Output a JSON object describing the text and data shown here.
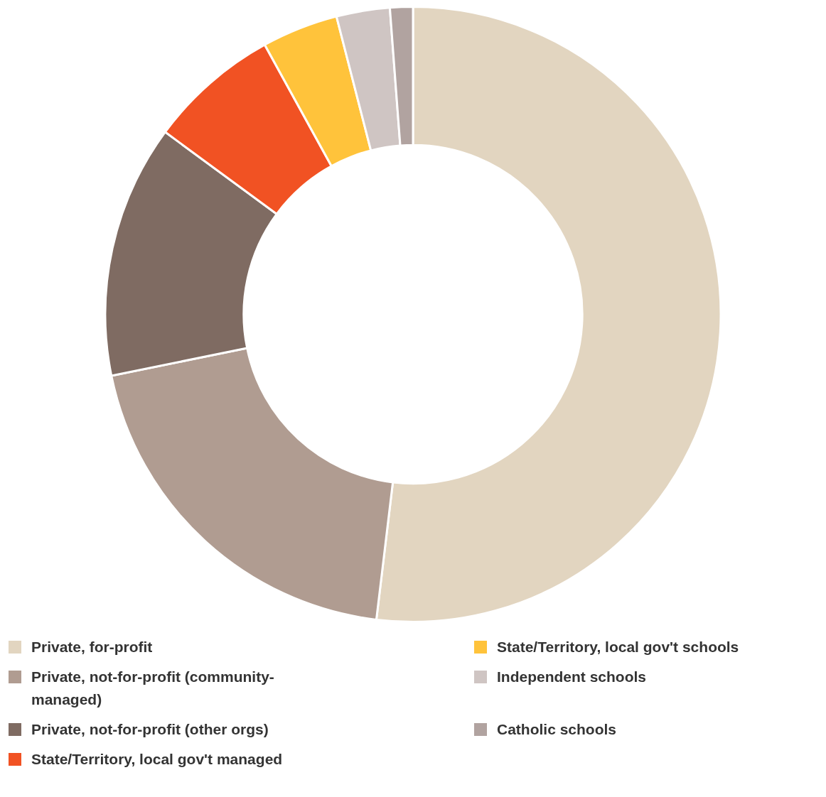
{
  "chart_data": {
    "type": "donut",
    "categories": [
      "Private, for-profit",
      "Private, not-for-profit (community-managed)",
      "Private, not-for-profit (other orgs)",
      "State/Territory, local gov't managed",
      "State/Territory, local gov't schools",
      "Independent schools",
      "Catholic schools"
    ],
    "values": [
      51.9,
      19.9,
      13.3,
      6.9,
      4.0,
      2.8,
      1.2
    ],
    "colors": [
      "#e2d5c0",
      "#b09c91",
      "#7f6b62",
      "#f15223",
      "#ffc33b",
      "#cfc5c3",
      "#b1a3a0"
    ],
    "legend": "bottom"
  }
}
